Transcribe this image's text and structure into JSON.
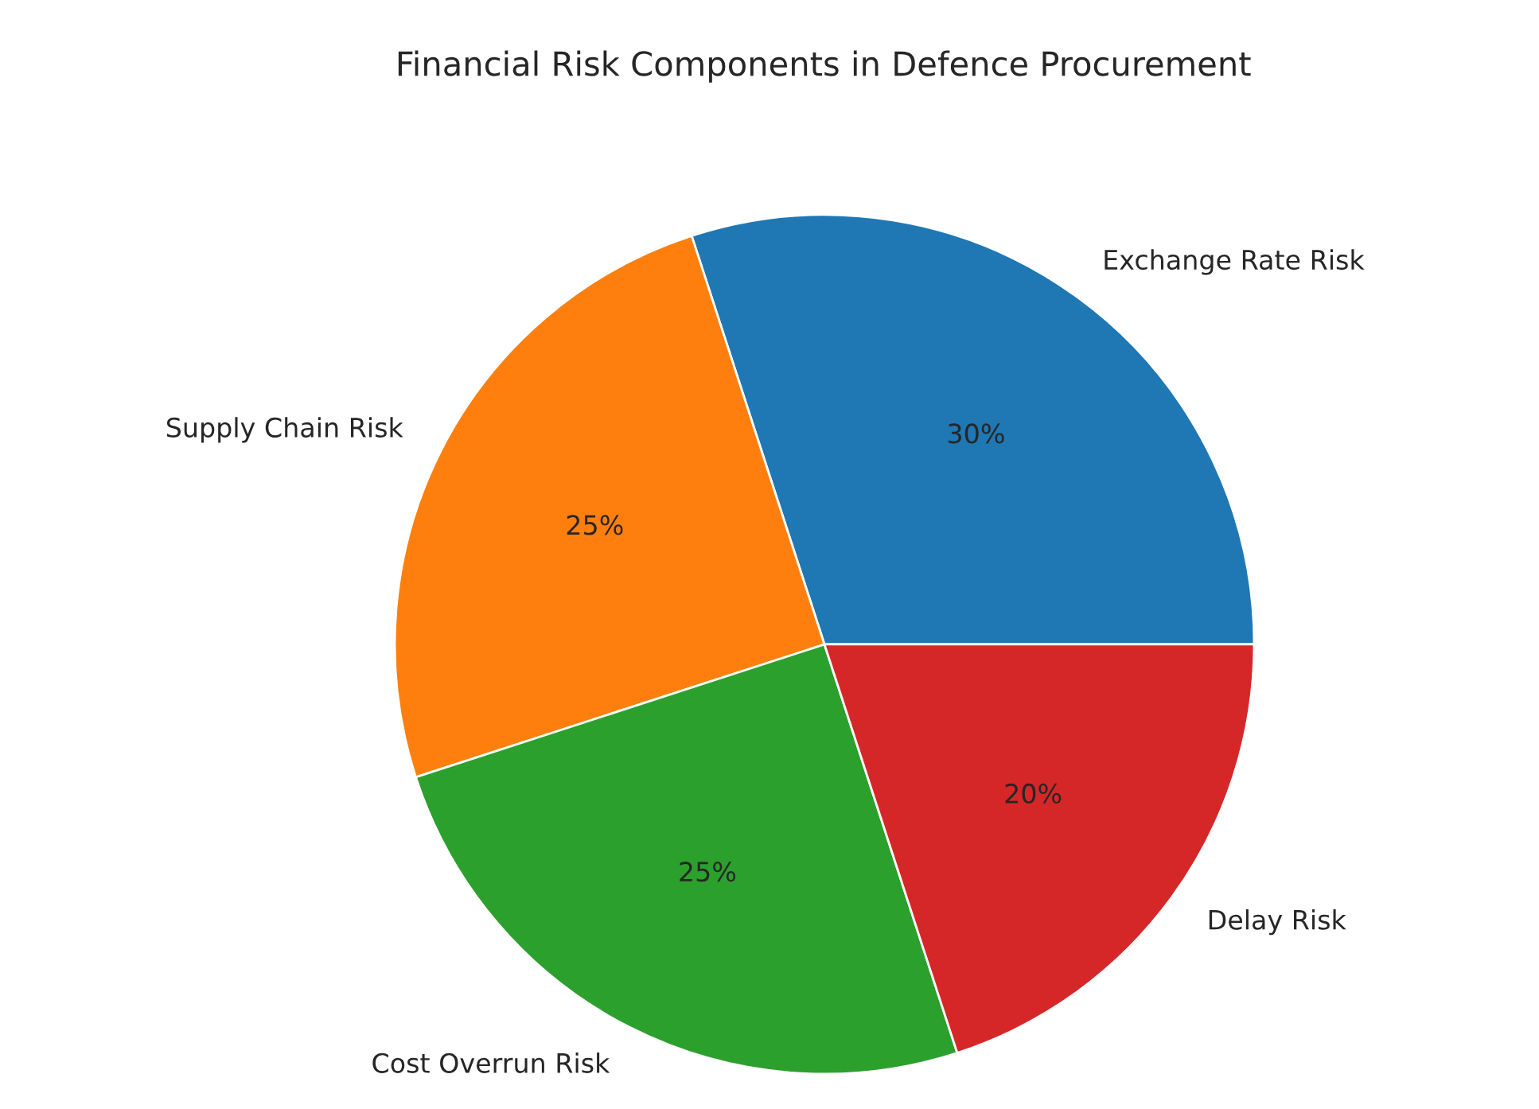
{
  "chart_data": {
    "type": "pie",
    "title": "Financial Risk Components in Defence Procurement",
    "categories": [
      "Exchange Rate Risk",
      "Supply Chain Risk",
      "Cost Overrun Risk",
      "Delay Risk"
    ],
    "values": [
      30,
      25,
      25,
      20
    ],
    "colors": [
      "#1f77b4",
      "#ff7f0e",
      "#2ca02c",
      "#d62728"
    ],
    "value_labels": [
      "30%",
      "25%",
      "25%",
      "20%"
    ]
  }
}
